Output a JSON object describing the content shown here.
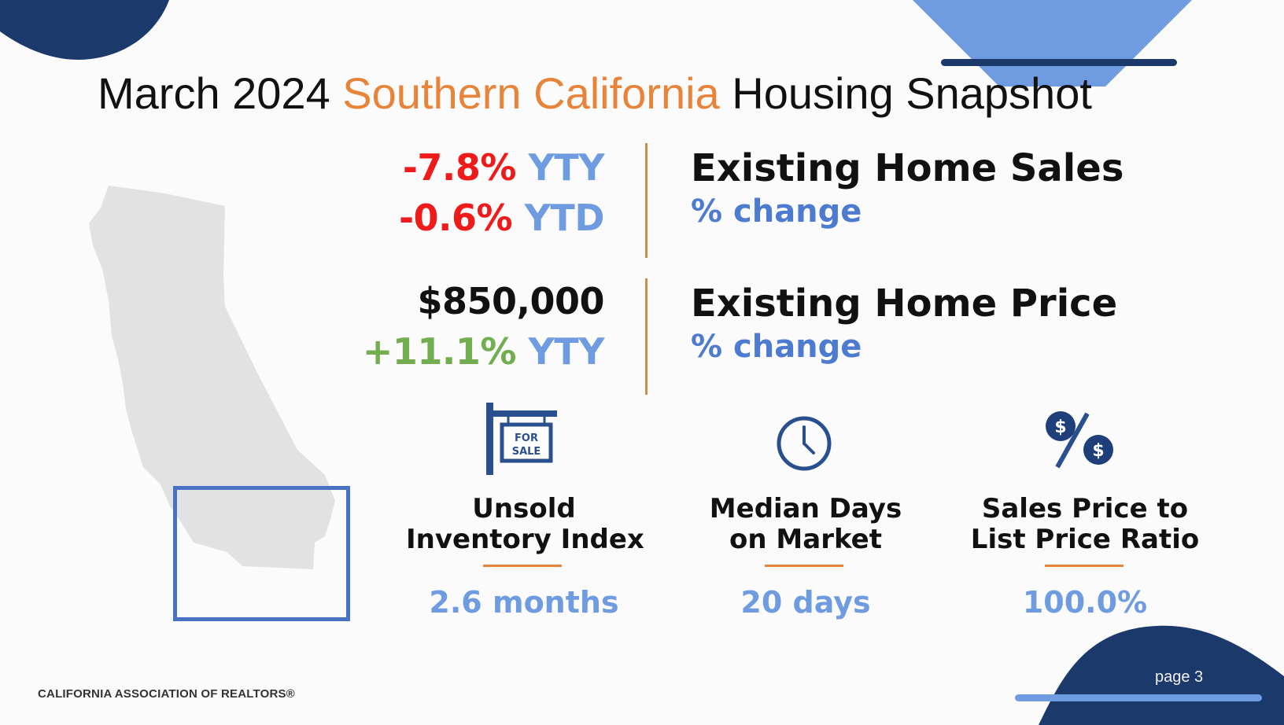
{
  "slide": {
    "title_part1": "March 2024",
    "title_accent": "Southern California",
    "title_part2": "Housing Snapshot",
    "colors": {
      "accent": "#e8833a",
      "navy": "#1b3a6b",
      "blue": "#6f9be0",
      "red": "#ee1b1b",
      "green": "#72ad4f"
    }
  },
  "sales": {
    "yty_value": "-7.8%",
    "yty_label": "YTY",
    "ytd_value": "-0.6%",
    "ytd_label": "YTD",
    "heading": "Existing Home Sales",
    "subheading": "% change"
  },
  "price": {
    "median_price": "$850,000",
    "yty_value": "+11.1%",
    "yty_label": "YTY",
    "heading": "Existing Home Price",
    "subheading": "% change"
  },
  "metrics": [
    {
      "icon": "for-sale-sign-icon",
      "label_line1": "Unsold",
      "label_line2": "Inventory Index",
      "value": "2.6 months"
    },
    {
      "icon": "clock-icon",
      "label_line1": "Median Days",
      "label_line2": "on Market",
      "value": "20 days"
    },
    {
      "icon": "dollar-percent-icon",
      "label_line1": "Sales Price to",
      "label_line2": "List Price Ratio",
      "value": "100.0%"
    }
  ],
  "footer": {
    "organization": "CALIFORNIA ASSOCIATION OF REALTORS®",
    "page": "page 3"
  }
}
